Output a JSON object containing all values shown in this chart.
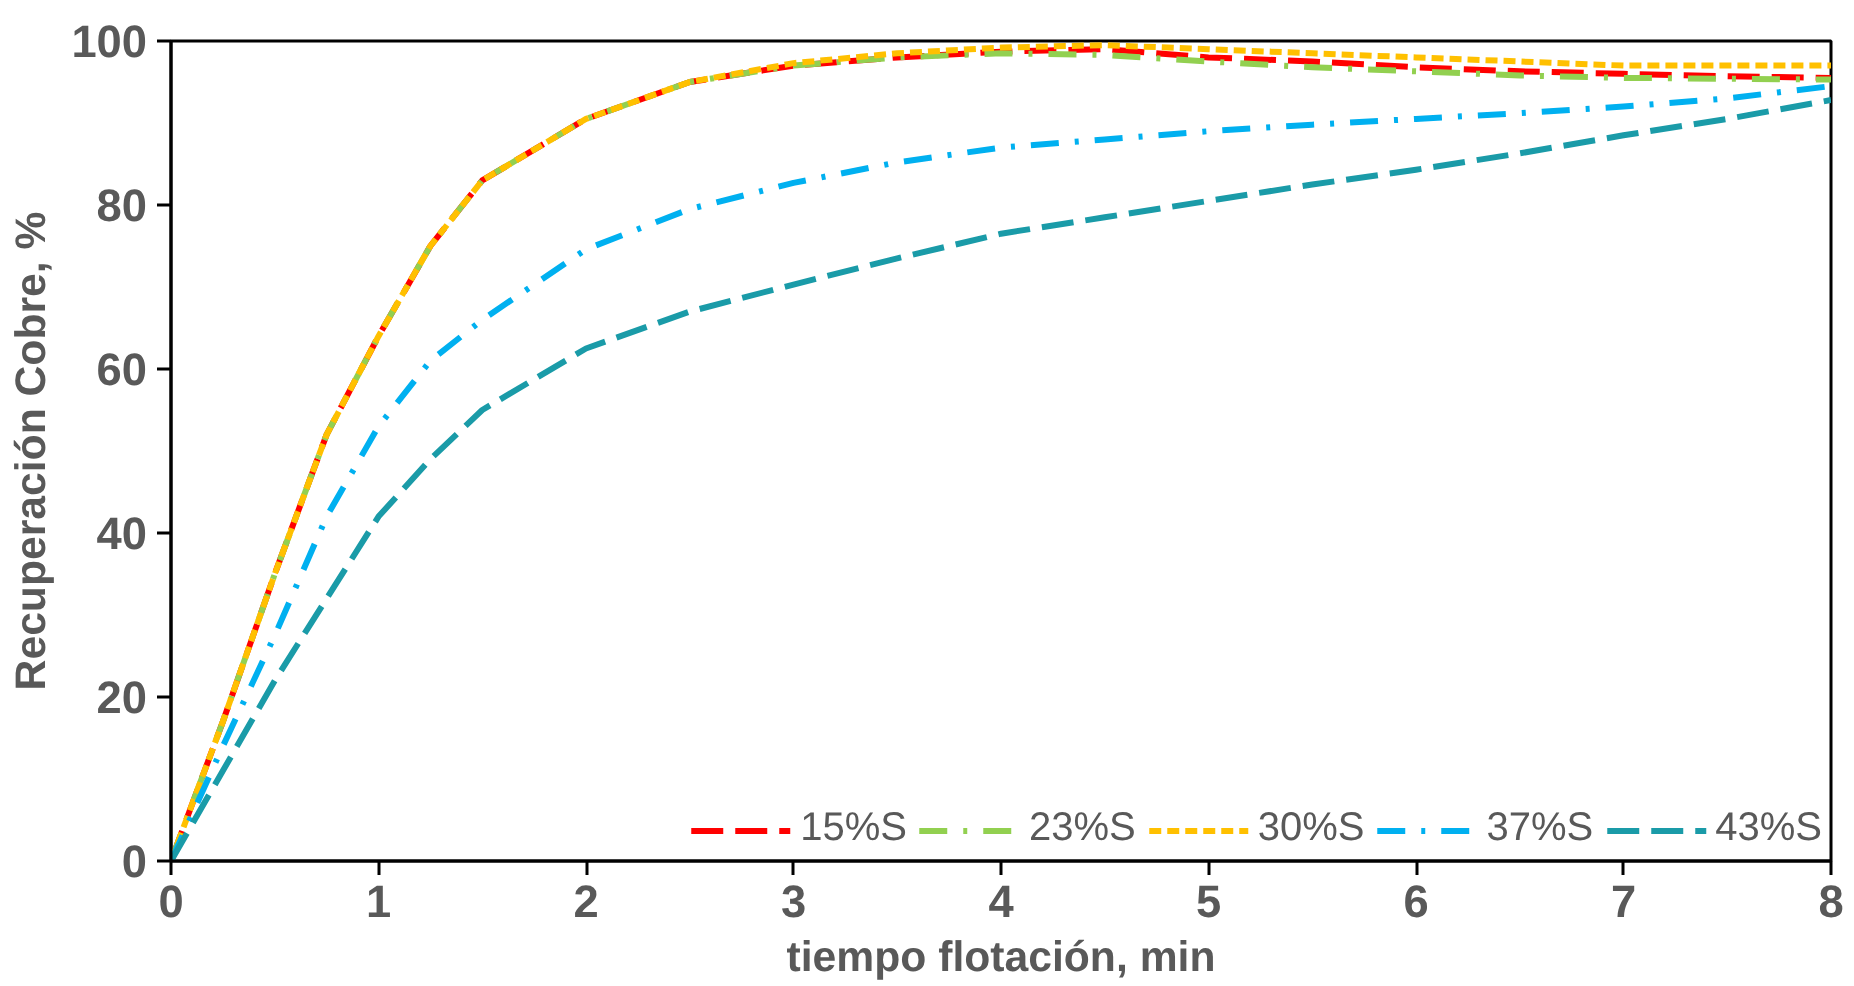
{
  "chart_data": {
    "type": "line",
    "xlabel": "tiempo flotación, min",
    "ylabel": "Recuperación Cobre, %",
    "x": [
      0,
      0.25,
      0.5,
      0.75,
      1,
      1.25,
      1.5,
      2,
      2.5,
      3,
      3.5,
      4,
      4.5,
      5,
      5.5,
      6,
      6.5,
      7,
      7.5,
      8
    ],
    "series": [
      {
        "name": "15%S",
        "color": "#ff0000",
        "line_style": "dashed",
        "values": [
          0,
          17,
          35,
          52,
          64,
          75,
          83,
          90.5,
          95,
          97,
          98,
          98.7,
          99,
          98,
          97.5,
          96.8,
          96.3,
          96,
          95.7,
          95.5
        ]
      },
      {
        "name": "23%S",
        "color": "#92d050",
        "line_style": "dashdot",
        "values": [
          0,
          17,
          35,
          52,
          64,
          75,
          83,
          90.5,
          95,
          97,
          98,
          98.5,
          98.3,
          97.5,
          96.8,
          96.3,
          95.8,
          95.5,
          95.4,
          95.3
        ]
      },
      {
        "name": "30%S",
        "color": "#ffc000",
        "line_style": "dotted",
        "values": [
          0,
          17,
          35,
          52,
          64,
          75,
          83,
          90.5,
          95,
          97.3,
          98.5,
          99.2,
          99.5,
          99,
          98.5,
          98,
          97.5,
          97,
          97,
          97
        ]
      },
      {
        "name": "37%S",
        "color": "#00b0f0",
        "line_style": "dashdot",
        "values": [
          0,
          14,
          27.5,
          42,
          53,
          61,
          66,
          74.6,
          79.5,
          82.7,
          85.2,
          87,
          88,
          89,
          89.8,
          90.5,
          91.2,
          92,
          93,
          94.5
        ]
      },
      {
        "name": "43%S",
        "color": "#1a9ba8",
        "line_style": "dashed",
        "values": [
          0,
          11,
          22,
          32,
          42,
          49,
          55,
          62.5,
          67,
          70.3,
          73.5,
          76.5,
          78.5,
          80.5,
          82.5,
          84.3,
          86.3,
          88.5,
          90.5,
          92.8
        ]
      }
    ],
    "xlim": [
      0,
      8
    ],
    "ylim": [
      0,
      100
    ],
    "xticks": [
      0,
      1,
      2,
      3,
      4,
      5,
      6,
      7,
      8
    ],
    "yticks": [
      0,
      20,
      40,
      60,
      80,
      100
    ],
    "grid": false,
    "legend": "bottom right"
  }
}
